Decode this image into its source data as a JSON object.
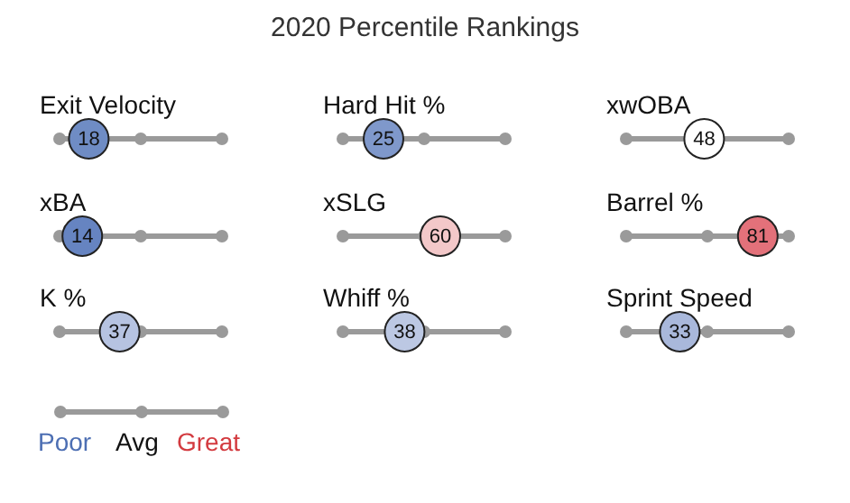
{
  "chart_data": {
    "type": "other",
    "title": "2020 Percentile Rankings",
    "categories": [
      "Exit Velocity",
      "Hard Hit %",
      "xwOBA",
      "xBA",
      "xSLG",
      "Barrel %",
      "K %",
      "Whiff %",
      "Sprint Speed"
    ],
    "values": [
      18,
      25,
      48,
      14,
      60,
      81,
      37,
      38,
      33
    ],
    "colors": [
      "#6f8cc4",
      "#7f98cb",
      "#ffffff",
      "#6684c1",
      "#f3c8c9",
      "#e3717a",
      "#b6c3e1",
      "#bcc8e3",
      "#a9b8db"
    ],
    "data_labels": true,
    "annotations": [
      "Poor",
      "Avg",
      "Great"
    ]
  }
}
